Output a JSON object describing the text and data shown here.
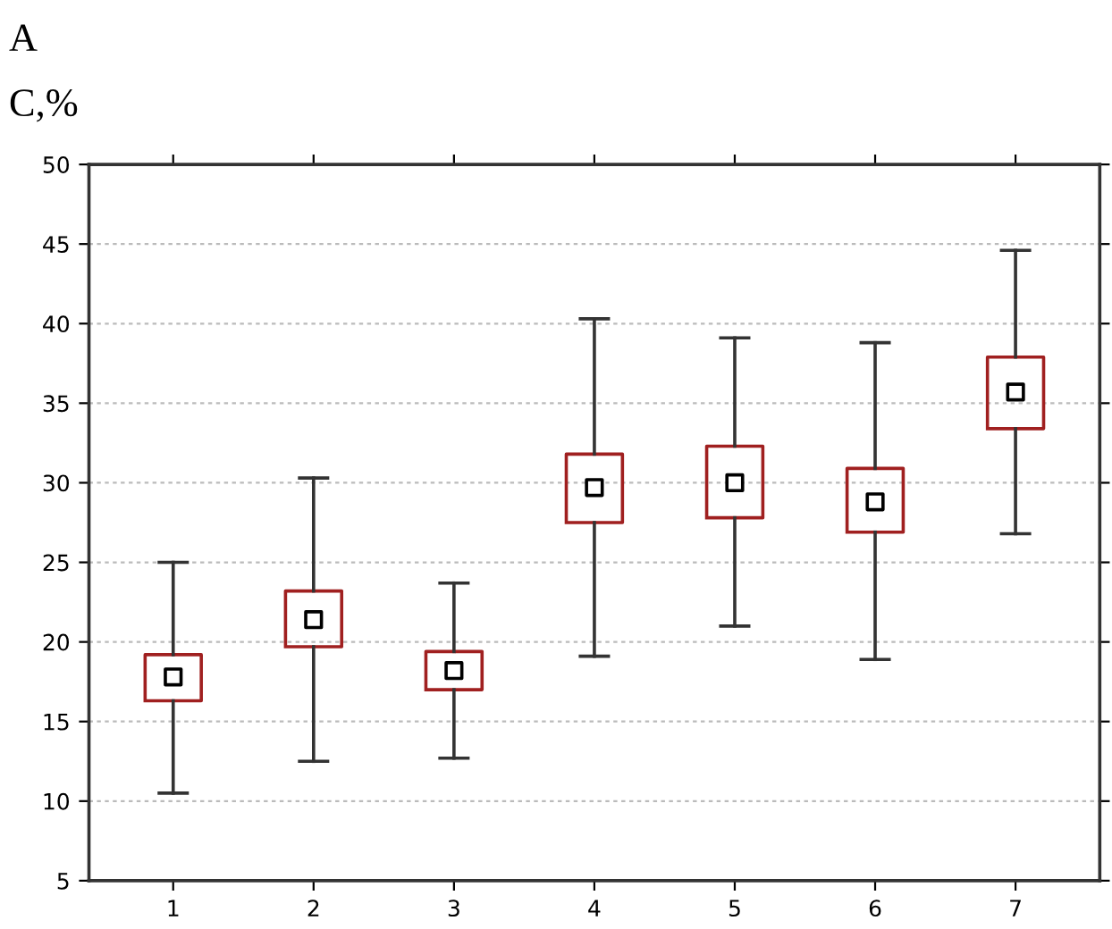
{
  "chart_data": {
    "type": "box",
    "title": "A",
    "ylabel": "C,%",
    "categories": [
      "1",
      "2",
      "3",
      "4",
      "5",
      "6",
      "7"
    ],
    "boxes": [
      {
        "low": 10.5,
        "q1": 16.3,
        "median": 17.8,
        "q3": 19.2,
        "high": 25.0
      },
      {
        "low": 12.5,
        "q1": 19.7,
        "median": 21.4,
        "q3": 23.2,
        "high": 30.3
      },
      {
        "low": 12.7,
        "q1": 17.0,
        "median": 18.2,
        "q3": 19.4,
        "high": 23.7
      },
      {
        "low": 19.1,
        "q1": 27.5,
        "median": 29.7,
        "q3": 31.8,
        "high": 40.3
      },
      {
        "low": 21.0,
        "q1": 27.8,
        "median": 30.0,
        "q3": 32.3,
        "high": 39.1
      },
      {
        "low": 18.9,
        "q1": 26.9,
        "median": 28.8,
        "q3": 30.9,
        "high": 38.8
      },
      {
        "low": 26.8,
        "q1": 33.4,
        "median": 35.7,
        "q3": 37.9,
        "high": 44.6
      }
    ],
    "color": "#a02020",
    "marker": "square",
    "ylim": [
      5,
      50
    ],
    "yticks": [
      5,
      10,
      15,
      20,
      25,
      30,
      35,
      40,
      45,
      50
    ],
    "grid": "y"
  }
}
